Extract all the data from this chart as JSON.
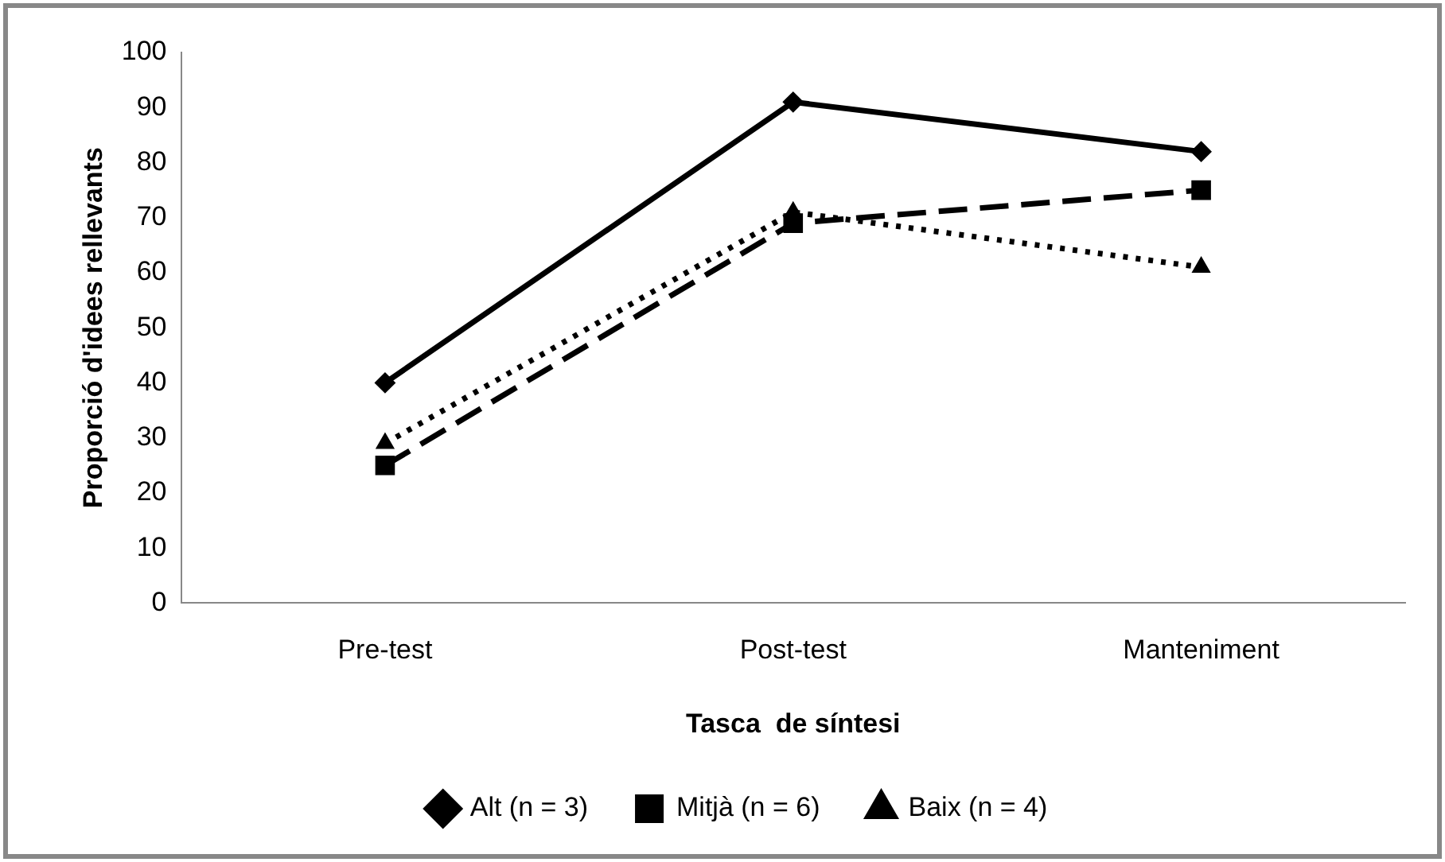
{
  "chart_data": {
    "type": "line",
    "xlabel": "Tasca  de síntesi",
    "ylabel": "Proporció d'idees rellevants",
    "categories": [
      "Pre-test",
      "Post-test",
      "Manteniment"
    ],
    "series": [
      {
        "name": "Alt (n = 3)",
        "color": "#000000",
        "values": [
          40,
          91,
          82
        ],
        "line_style": "solid",
        "marker": "diamond"
      },
      {
        "name": "Mitjà (n = 6)",
        "color": "#000000",
        "values": [
          25,
          69,
          75
        ],
        "line_style": "dashed",
        "marker": "square"
      },
      {
        "name": "Baix (n = 4)",
        "color": "#000000",
        "values": [
          29,
          71,
          61
        ],
        "line_style": "dotted",
        "marker": "triangle"
      }
    ],
    "ylim": [
      0,
      100
    ],
    "yticks": [
      0,
      10,
      20,
      30,
      40,
      50,
      60,
      70,
      80,
      90,
      100
    ],
    "grid": false,
    "legend": "bottom"
  }
}
